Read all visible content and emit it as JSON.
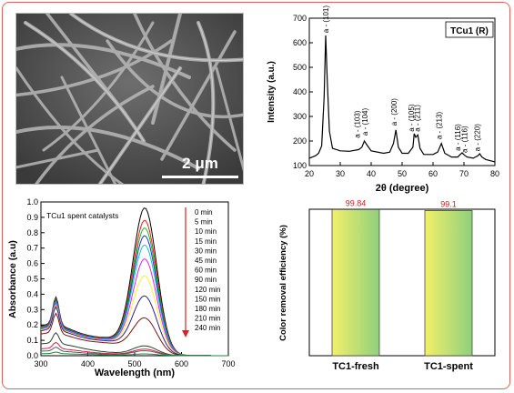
{
  "figure": {
    "sem": {
      "scale_bar_label": "2 μm"
    }
  },
  "chart_data": [
    {
      "id": "xrd",
      "type": "line",
      "title": "TCu1 (R)",
      "xlabel": "2θ (degree)",
      "ylabel": "Intensity (a.u.)",
      "xlim": [
        20,
        80
      ],
      "ylim": [
        100,
        700
      ],
      "xticks": [
        20,
        30,
        40,
        50,
        60,
        70,
        80
      ],
      "yticks": [
        100,
        200,
        300,
        400,
        500,
        600,
        700
      ],
      "grid": false,
      "color": "#000000",
      "x": [
        20,
        22,
        23,
        24,
        24.8,
        25.3,
        25.8,
        26.5,
        27.5,
        30,
        33,
        36,
        37,
        37.8,
        38.6,
        40,
        44,
        46,
        47.2,
        48,
        48.8,
        50,
        52,
        53.5,
        53.9,
        54.4,
        55.1,
        55.8,
        57,
        60,
        61.5,
        62.7,
        63.8,
        66,
        68,
        68.8,
        69.4,
        70.2,
        71,
        73,
        74.5,
        75.1,
        75.8,
        77,
        80
      ],
      "y": [
        130,
        140,
        150,
        180,
        380,
        630,
        450,
        240,
        170,
        160,
        158,
        165,
        175,
        200,
        185,
        160,
        150,
        155,
        190,
        245,
        175,
        150,
        150,
        175,
        230,
        215,
        225,
        170,
        145,
        145,
        155,
        190,
        150,
        135,
        135,
        145,
        152,
        142,
        135,
        130,
        140,
        148,
        135,
        125,
        115
      ],
      "annotations": [
        {
          "text": "a - (101)",
          "x": 26.2,
          "y": 640
        },
        {
          "text": "a - (103)",
          "x": 36.3,
          "y": 212
        },
        {
          "text": "a - (104)",
          "x": 38.8,
          "y": 222
        },
        {
          "text": "a - (200)",
          "x": 48.3,
          "y": 262
        },
        {
          "text": "a - (105)",
          "x": 53.8,
          "y": 238
        },
        {
          "text": "a - (211)",
          "x": 55.8,
          "y": 238
        },
        {
          "text": "a - (213)",
          "x": 62.8,
          "y": 207
        },
        {
          "text": "a - (116)",
          "x": 68.8,
          "y": 160
        },
        {
          "text": "a - (116)",
          "x": 71.0,
          "y": 152
        },
        {
          "text": "a - (220)",
          "x": 75.2,
          "y": 158
        }
      ]
    },
    {
      "id": "uvvis",
      "type": "line",
      "title": "TCu1 spent catalysts",
      "xlabel": "Wavelength (nm)",
      "ylabel": "Absorbance (a.u)",
      "xlim": [
        300,
        700
      ],
      "ylim": [
        0.0,
        1.0
      ],
      "xticks": [
        300,
        400,
        500,
        600,
        700
      ],
      "yticks": [
        0.0,
        0.1,
        0.2,
        0.3,
        0.4,
        0.5,
        0.6,
        0.7,
        0.8,
        0.9,
        1.0
      ],
      "grid": false,
      "legend_position": "right",
      "legend_arrow_color": "#e02020",
      "series": [
        {
          "name": "0 min",
          "color": "#000000",
          "peak": 0.94,
          "shoulder": 0.36
        },
        {
          "name": "5 min",
          "color": "#e8201c",
          "peak": 0.86,
          "shoulder": 0.35
        },
        {
          "name": "10 min",
          "color": "#1bbf1b",
          "peak": 0.81,
          "shoulder": 0.345
        },
        {
          "name": "15 min",
          "color": "#2233dd",
          "peak": 0.76,
          "shoulder": 0.34
        },
        {
          "name": "30 min",
          "color": "#18c0c8",
          "peak": 0.7,
          "shoulder": 0.33
        },
        {
          "name": "45 min",
          "color": "#e020e0",
          "peak": 0.61,
          "shoulder": 0.32
        },
        {
          "name": "60 min",
          "color": "#f5f03a",
          "peak": 0.5,
          "shoulder": 0.31
        },
        {
          "name": "90 min",
          "color": "#2a2090",
          "peak": 0.37,
          "shoulder": 0.3
        },
        {
          "name": "120 min",
          "color": "#7a1515",
          "peak": 0.23,
          "shoulder": 0.26
        },
        {
          "name": "150 min",
          "color": "#224422",
          "peak": 0.06,
          "shoulder": 0.14
        },
        {
          "name": "180 min",
          "color": "#d02050",
          "peak": 0.04,
          "shoulder": 0.08
        },
        {
          "name": "210 min",
          "color": "#5a5a5a",
          "peak": 0.03,
          "shoulder": 0.05
        },
        {
          "name": "240 min",
          "color": "#1a8a3a",
          "peak": 0.01,
          "shoulder": 0.02
        }
      ]
    },
    {
      "id": "efficiency",
      "type": "bar",
      "categories": [
        "TC1-fresh",
        "TC1-spent"
      ],
      "values": [
        99.84,
        99.1
      ],
      "data_labels": [
        "99.84",
        "99.1"
      ],
      "ylabel": "Color removal efficiency (%)",
      "ylim": [
        0,
        100
      ],
      "label_color": "#d0201c",
      "bar_gradient": [
        "#f2f06a",
        "#8fd07c"
      ]
    }
  ]
}
